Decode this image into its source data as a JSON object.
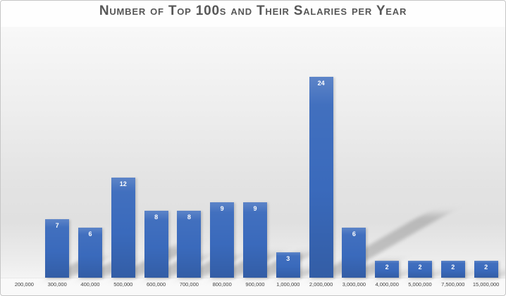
{
  "chart_data": {
    "type": "bar",
    "title": "Number of Top 100s and Their Salaries per Year",
    "categories": [
      "200,000",
      "300,000",
      "400,000",
      "500,000",
      "600,000",
      "700,000",
      "800,000",
      "900,000",
      "1,000,000",
      "2,000,000",
      "3,000,000",
      "4,000,000",
      "5,000,000",
      "7,500,000",
      "15,000,000"
    ],
    "values": [
      0,
      7,
      6,
      12,
      8,
      8,
      9,
      9,
      3,
      24,
      6,
      2,
      2,
      2,
      2
    ],
    "xlabel": "",
    "ylabel": "",
    "ylim": [
      0,
      30
    ],
    "grid": false,
    "legend": false,
    "data_labels_position": "inside end",
    "bar_color": "#3a6abc",
    "data_label_color": "#ffffff",
    "title_color": "#575757",
    "axis_label_color": "#3f3f3f",
    "plot_background": "gray vertical gradient",
    "effects": "perspective ground shadows behind bars"
  }
}
